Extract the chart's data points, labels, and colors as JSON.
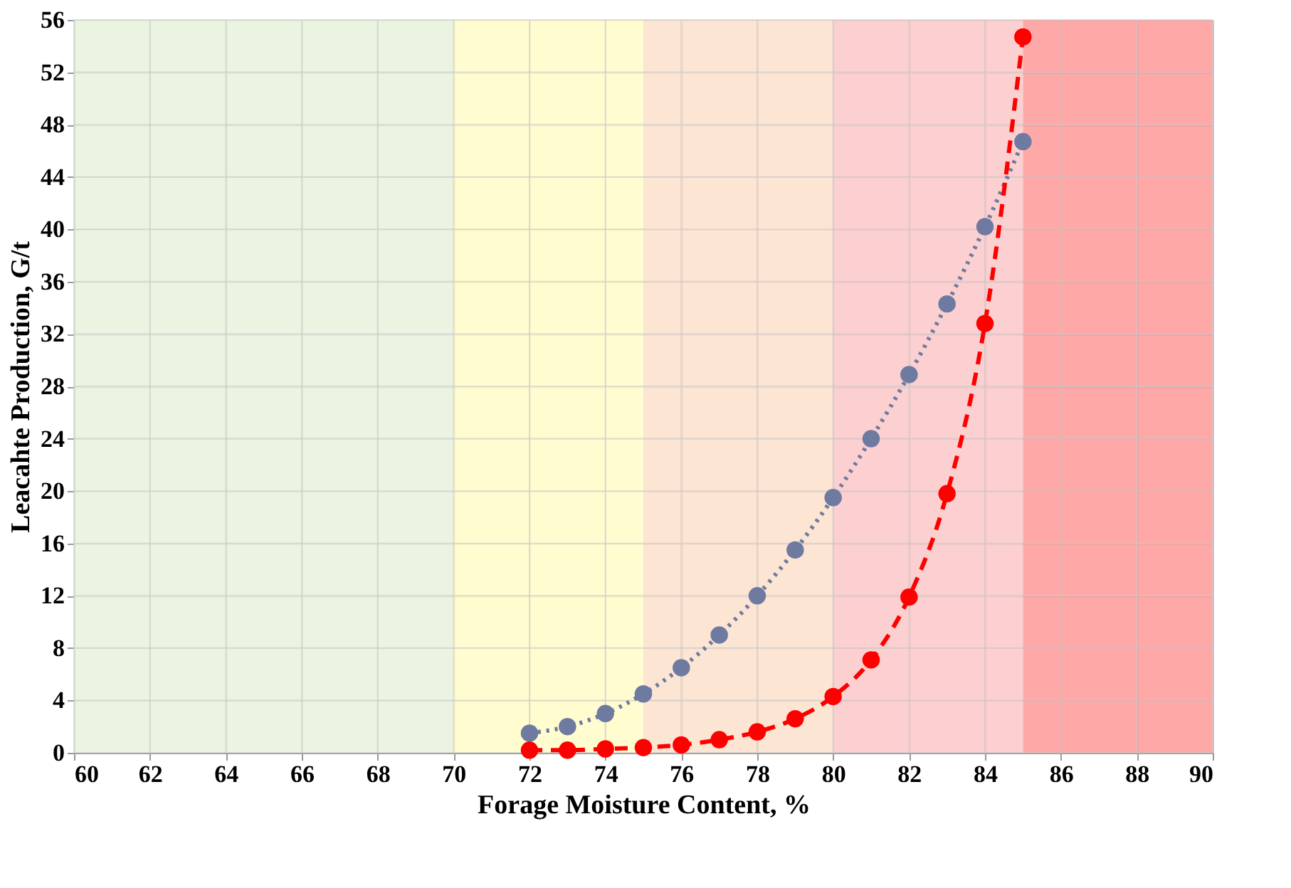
{
  "chart_data": {
    "type": "line",
    "xlabel": "Forage Moisture Content, %",
    "ylabel": "Leacahte  Production,  G/t",
    "x": [
      72,
      73,
      74,
      75,
      76,
      77,
      78,
      79,
      80,
      81,
      82,
      83,
      84,
      85
    ],
    "series": [
      {
        "color": "#6f7aa0",
        "line_style": "dotted",
        "marker": "circle",
        "values": [
          1.5,
          2.0,
          3.0,
          4.5,
          6.5,
          9.0,
          12.0,
          15.5,
          19.5,
          24.0,
          28.9,
          34.3,
          40.2,
          46.7
        ]
      },
      {
        "color": "#ff0000",
        "line_style": "dashed",
        "marker": "circle",
        "values": [
          0.2,
          0.2,
          0.3,
          0.4,
          0.6,
          1.0,
          1.6,
          2.6,
          4.3,
          7.1,
          11.9,
          19.8,
          32.8,
          54.7
        ]
      }
    ],
    "bands": [
      {
        "axis": "x",
        "from": 60,
        "to": 70,
        "color": "#e8f2dc"
      },
      {
        "axis": "x",
        "from": 70,
        "to": 75,
        "color": "#fffbc8"
      },
      {
        "axis": "x",
        "from": 75,
        "to": 80,
        "color": "#fde0cc"
      },
      {
        "axis": "x",
        "from": 80,
        "to": 85,
        "color": "#fcc8c8"
      },
      {
        "axis": "x",
        "from": 85,
        "to": 90,
        "color": "#ff9999"
      }
    ],
    "xlim": [
      60,
      90
    ],
    "xticks": [
      60,
      62,
      64,
      66,
      68,
      70,
      72,
      74,
      76,
      78,
      80,
      82,
      84,
      86,
      88,
      90
    ],
    "ylim": [
      0,
      56
    ],
    "yticks": [
      0,
      4,
      8,
      12,
      16,
      20,
      24,
      28,
      32,
      36,
      40,
      44,
      48,
      52,
      56
    ],
    "grid": true
  }
}
